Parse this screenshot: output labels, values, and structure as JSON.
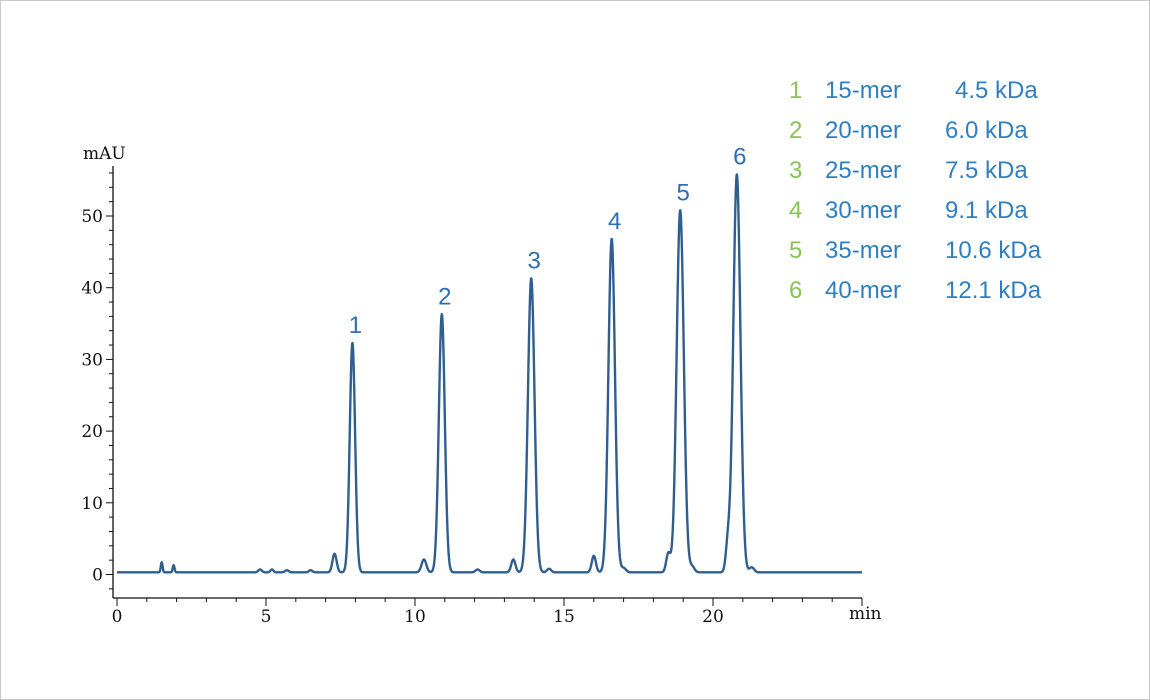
{
  "chart_data": {
    "type": "line",
    "title": "",
    "xlabel": "min",
    "ylabel": "mAU",
    "xlim": [
      0,
      25
    ],
    "ylim": [
      -3,
      57
    ],
    "x_ticks": [
      {
        "value": 0,
        "label": "0"
      },
      {
        "value": 5,
        "label": "5"
      },
      {
        "value": 10,
        "label": "10"
      },
      {
        "value": 15,
        "label": "15"
      },
      {
        "value": 20,
        "label": "20"
      }
    ],
    "y_ticks": [
      {
        "value": 0,
        "label": "0"
      },
      {
        "value": 10,
        "label": "10"
      },
      {
        "value": 20,
        "label": "20"
      },
      {
        "value": 30,
        "label": "30"
      },
      {
        "value": 40,
        "label": "40"
      },
      {
        "value": 50,
        "label": "50"
      }
    ],
    "grid": false,
    "line_color": "#2f5f8f",
    "baseline": 0.3,
    "peaks": [
      {
        "label": "1",
        "time": 7.9,
        "height": 32,
        "width": 0.09
      },
      {
        "label": "2",
        "time": 10.9,
        "height": 36,
        "width": 0.1
      },
      {
        "label": "3",
        "time": 13.9,
        "height": 41,
        "width": 0.11
      },
      {
        "label": "4",
        "time": 16.6,
        "height": 46.5,
        "width": 0.11
      },
      {
        "label": "5",
        "time": 18.9,
        "height": 50.5,
        "width": 0.12
      },
      {
        "label": "6",
        "time": 20.8,
        "height": 55.5,
        "width": 0.12
      }
    ],
    "minor_peaks": [
      {
        "time": 1.5,
        "height": 1.4,
        "width": 0.03
      },
      {
        "time": 1.9,
        "height": 1.0,
        "width": 0.03
      },
      {
        "time": 4.8,
        "height": 0.4,
        "width": 0.06
      },
      {
        "time": 5.2,
        "height": 0.4,
        "width": 0.05
      },
      {
        "time": 5.7,
        "height": 0.3,
        "width": 0.06
      },
      {
        "time": 6.5,
        "height": 0.3,
        "width": 0.06
      },
      {
        "time": 7.3,
        "height": 2.6,
        "width": 0.07
      },
      {
        "time": 10.3,
        "height": 1.8,
        "width": 0.08
      },
      {
        "time": 12.1,
        "height": 0.4,
        "width": 0.07
      },
      {
        "time": 13.3,
        "height": 1.8,
        "width": 0.07
      },
      {
        "time": 14.5,
        "height": 0.5,
        "width": 0.07
      },
      {
        "time": 16.0,
        "height": 2.3,
        "width": 0.07
      },
      {
        "time": 17.0,
        "height": 0.6,
        "width": 0.08
      },
      {
        "time": 18.5,
        "height": 2.6,
        "width": 0.07
      },
      {
        "time": 19.3,
        "height": 0.8,
        "width": 0.08
      },
      {
        "time": 20.5,
        "height": 3.8,
        "width": 0.07
      },
      {
        "time": 21.3,
        "height": 0.7,
        "width": 0.08
      }
    ]
  },
  "legend": [
    {
      "num": "1",
      "mer": "15-mer",
      "kda": "4.5 kDa",
      "num_color": "#86c453"
    },
    {
      "num": "2",
      "mer": "20-mer",
      "kda": "6.0 kDa",
      "num_color": "#86c453"
    },
    {
      "num": "3",
      "mer": "25-mer",
      "kda": "7.5 kDa",
      "num_color": "#86c453"
    },
    {
      "num": "4",
      "mer": "30-mer",
      "kda": "9.1 kDa",
      "num_color": "#86c453"
    },
    {
      "num": "5",
      "mer": "35-mer",
      "kda": "10.6 kDa",
      "num_color": "#86c453"
    },
    {
      "num": "6",
      "mer": "40-mer",
      "kda": "12.1 kDa",
      "num_color": "#86c453"
    }
  ]
}
